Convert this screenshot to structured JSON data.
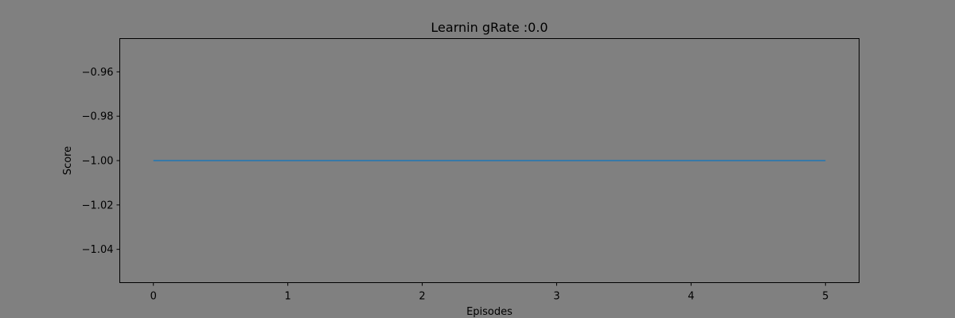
{
  "chart_data": {
    "type": "line",
    "title": "Learnin gRate :0.0",
    "xlabel": "Episodes",
    "ylabel": "Score",
    "xlim": [
      -0.25,
      5.25
    ],
    "ylim": [
      -1.055,
      -0.945
    ],
    "xticks": [
      0,
      1,
      2,
      3,
      4,
      5
    ],
    "xtick_labels": [
      "0",
      "1",
      "2",
      "3",
      "4",
      "5"
    ],
    "yticks": [
      -0.96,
      -0.98,
      -1.0,
      -1.02,
      -1.04
    ],
    "ytick_labels": [
      "−0.96",
      "−0.98",
      "−1.00",
      "−1.02",
      "−1.04"
    ],
    "grid": false,
    "series": [
      {
        "x": [
          0,
          1,
          2,
          3,
          4,
          5
        ],
        "y": [
          -1.0,
          -1.0,
          -1.0,
          -1.0,
          -1.0,
          -1.0
        ],
        "color": "#1f77b4"
      }
    ],
    "colors": {
      "figure_background": "#808080",
      "axes_background": "#808080",
      "axis_color": "#000000"
    }
  }
}
